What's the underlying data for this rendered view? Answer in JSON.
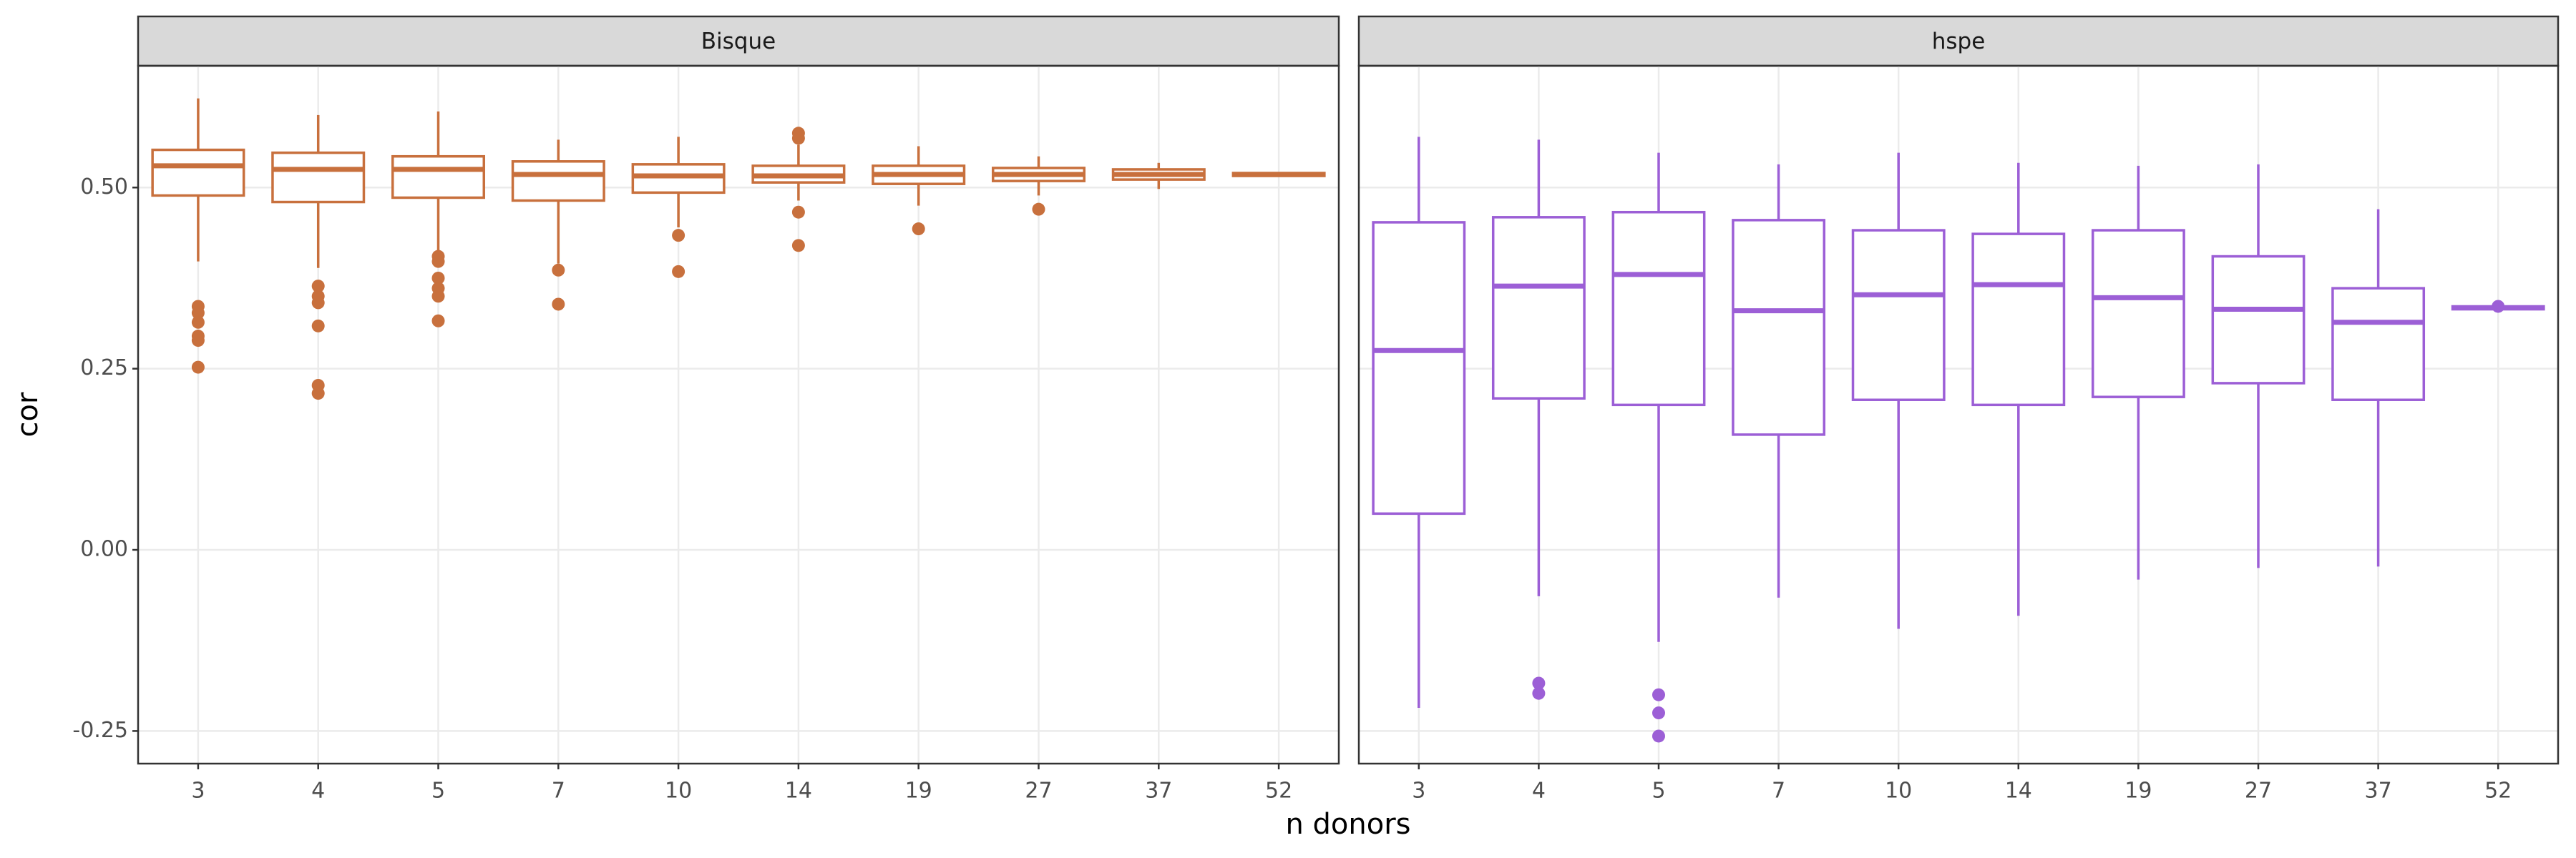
{
  "chart_data": {
    "type": "box",
    "ylabel": "cor",
    "xlabel": "n donors",
    "categories": [
      "3",
      "4",
      "5",
      "7",
      "10",
      "14",
      "19",
      "27",
      "37",
      "52"
    ],
    "ylim": [
      -0.295,
      0.668
    ],
    "yticks": [
      {
        "value": -0.25,
        "label": "-0.25"
      },
      {
        "value": 0,
        "label": "0.00"
      },
      {
        "value": 0.25,
        "label": "0.25"
      },
      {
        "value": 0.5,
        "label": "0.50"
      }
    ],
    "grid": true,
    "facets": [
      {
        "title": "Bisque",
        "color": "#c8703d",
        "boxes": [
          {
            "min": 0.398,
            "q1": 0.489,
            "median": 0.53,
            "q3": 0.552,
            "max": 0.623,
            "outliers": [
              0.336,
              0.327,
              0.314,
              0.295,
              0.289,
              0.252
            ]
          },
          {
            "min": 0.389,
            "q1": 0.48,
            "median": 0.525,
            "q3": 0.548,
            "max": 0.6,
            "outliers": [
              0.364,
              0.35,
              0.341,
              0.309,
              0.227,
              0.216
            ]
          },
          {
            "min": 0.409,
            "q1": 0.486,
            "median": 0.525,
            "q3": 0.543,
            "max": 0.605,
            "outliers": [
              0.405,
              0.398,
              0.375,
              0.361,
              0.35,
              0.316
            ]
          },
          {
            "min": 0.395,
            "q1": 0.482,
            "median": 0.518,
            "q3": 0.536,
            "max": 0.566,
            "outliers": [
              0.386,
              0.339
            ]
          },
          {
            "min": 0.445,
            "q1": 0.493,
            "median": 0.516,
            "q3": 0.532,
            "max": 0.57,
            "outliers": [
              0.434,
              0.384
            ]
          },
          {
            "min": 0.482,
            "q1": 0.507,
            "median": 0.516,
            "q3": 0.53,
            "max": 0.559,
            "outliers": [
              0.575,
              0.568,
              0.466,
              0.42
            ]
          },
          {
            "min": 0.475,
            "q1": 0.505,
            "median": 0.518,
            "q3": 0.53,
            "max": 0.557,
            "outliers": [
              0.443
            ]
          },
          {
            "min": 0.489,
            "q1": 0.509,
            "median": 0.518,
            "q3": 0.527,
            "max": 0.543,
            "outliers": [
              0.47
            ]
          },
          {
            "min": 0.498,
            "q1": 0.511,
            "median": 0.518,
            "q3": 0.525,
            "max": 0.534,
            "outliers": []
          },
          {
            "min": 0.515,
            "q1": 0.516,
            "median": 0.518,
            "q3": 0.52,
            "max": 0.521,
            "outliers": []
          }
        ]
      },
      {
        "title": "hspe",
        "color": "#9c5fd6",
        "boxes": [
          {
            "min": -0.218,
            "q1": 0.05,
            "median": 0.275,
            "q3": 0.452,
            "max": 0.57,
            "outliers": []
          },
          {
            "min": -0.064,
            "q1": 0.209,
            "median": 0.364,
            "q3": 0.459,
            "max": 0.566,
            "outliers": [
              -0.184,
              -0.198
            ]
          },
          {
            "min": -0.127,
            "q1": 0.2,
            "median": 0.38,
            "q3": 0.466,
            "max": 0.548,
            "outliers": [
              -0.2,
              -0.225,
              -0.257
            ]
          },
          {
            "min": -0.066,
            "q1": 0.159,
            "median": 0.33,
            "q3": 0.455,
            "max": 0.532,
            "outliers": []
          },
          {
            "min": -0.109,
            "q1": 0.207,
            "median": 0.352,
            "q3": 0.441,
            "max": 0.548,
            "outliers": []
          },
          {
            "min": -0.091,
            "q1": 0.2,
            "median": 0.366,
            "q3": 0.436,
            "max": 0.534,
            "outliers": []
          },
          {
            "min": -0.041,
            "q1": 0.211,
            "median": 0.348,
            "q3": 0.441,
            "max": 0.53,
            "outliers": []
          },
          {
            "min": -0.025,
            "q1": 0.23,
            "median": 0.332,
            "q3": 0.405,
            "max": 0.532,
            "outliers": []
          },
          {
            "min": -0.023,
            "q1": 0.207,
            "median": 0.314,
            "q3": 0.361,
            "max": 0.47,
            "outliers": []
          },
          {
            "min": 0.33,
            "q1": 0.332,
            "median": 0.334,
            "q3": 0.336,
            "max": 0.338,
            "outliers": [
              0.336
            ]
          }
        ]
      }
    ]
  }
}
